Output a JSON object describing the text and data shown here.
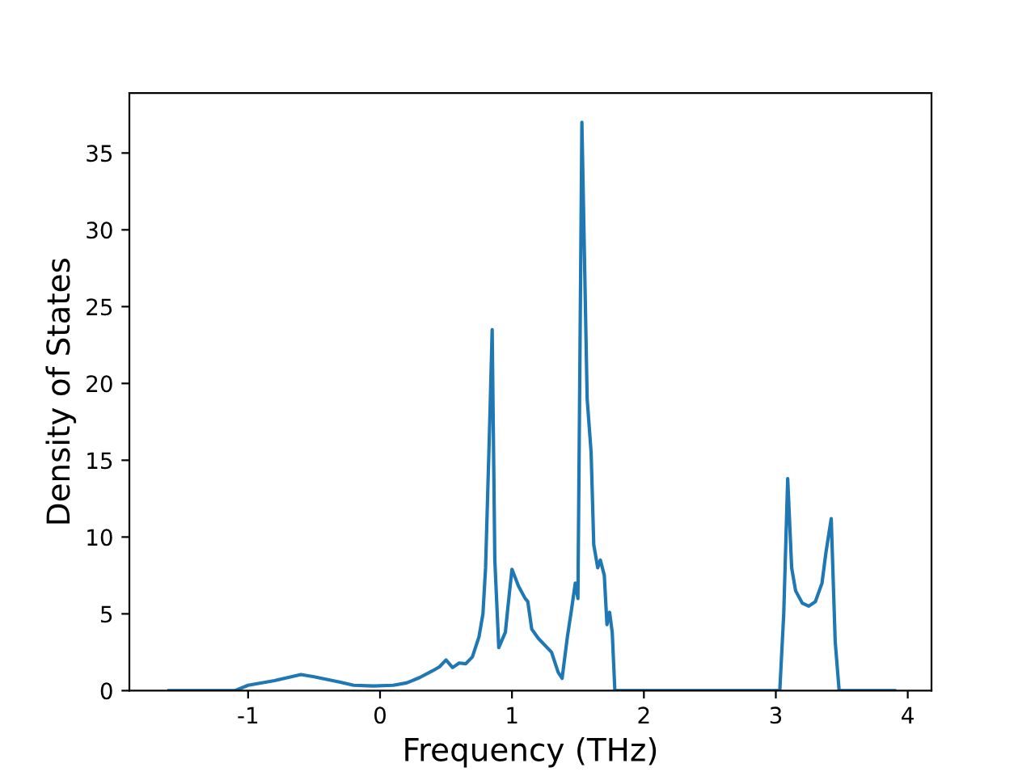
{
  "chart_data": {
    "type": "line",
    "xlabel": "Frequency (THz)",
    "ylabel": "Density of States",
    "x": [
      -1.6,
      -1.1,
      -1.0,
      -0.8,
      -0.6,
      -0.5,
      -0.3,
      -0.2,
      -0.05,
      0.1,
      0.2,
      0.3,
      0.4,
      0.45,
      0.5,
      0.55,
      0.6,
      0.65,
      0.7,
      0.75,
      0.78,
      0.8,
      0.83,
      0.85,
      0.87,
      0.9,
      0.95,
      0.97,
      1.0,
      1.05,
      1.1,
      1.12,
      1.15,
      1.2,
      1.3,
      1.35,
      1.38,
      1.42,
      1.45,
      1.48,
      1.5,
      1.53,
      1.57,
      1.6,
      1.62,
      1.65,
      1.67,
      1.7,
      1.72,
      1.74,
      1.76,
      1.78,
      2.5,
      3.03,
      3.06,
      3.09,
      3.12,
      3.15,
      3.2,
      3.25,
      3.3,
      3.35,
      3.38,
      3.42,
      3.45,
      3.48,
      3.9
    ],
    "series": [
      {
        "color": "#1f77b4",
        "values": [
          0,
          0,
          0.35,
          0.65,
          1.05,
          0.9,
          0.55,
          0.35,
          0.3,
          0.35,
          0.5,
          0.85,
          1.3,
          1.55,
          2.0,
          1.5,
          1.8,
          1.75,
          2.2,
          3.5,
          5,
          8,
          17,
          23.5,
          8.5,
          2.8,
          3.8,
          5.5,
          7.9,
          6.8,
          6.0,
          5.8,
          4.0,
          3.4,
          2.5,
          1.2,
          0.8,
          3.5,
          5.2,
          7.0,
          6.0,
          37,
          19,
          15.5,
          9.5,
          8.0,
          8.5,
          7.5,
          4.3,
          5.1,
          3.8,
          0,
          0,
          0,
          5,
          13.8,
          8,
          6.5,
          5.7,
          5.5,
          5.8,
          7,
          9,
          11.2,
          3.2,
          0,
          0
        ]
      }
    ],
    "xlim": [
      -1.9,
      4.18
    ],
    "ylim": [
      0,
      38.9
    ],
    "xticks": [
      -1,
      0,
      1,
      2,
      3,
      4
    ],
    "yticks": [
      0,
      5,
      10,
      15,
      20,
      25,
      30,
      35
    ],
    "grid": false,
    "legend": false
  }
}
